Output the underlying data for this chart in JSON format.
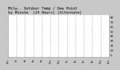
{
  "title_line1": "Milw.. Outdoor Temp / Dew Point",
  "title_line2": "by Minute  (24 Hours) (Alternate)",
  "fig_bg_color": "#c8c8c8",
  "plot_bg_color": "#ffffff",
  "text_color": "#000000",
  "grid_color": "#aaaaaa",
  "temp_color": "#ff0000",
  "dew_color": "#0000ff",
  "ylim": [
    -5,
    85
  ],
  "xlim": [
    0,
    1440
  ],
  "yticks": [
    0,
    10,
    20,
    30,
    40,
    50,
    60,
    70,
    80
  ],
  "ytick_labels": [
    "0",
    "10",
    "20",
    "30",
    "40",
    "50",
    "60",
    "70",
    "80"
  ],
  "title_fontsize": 4.0,
  "tick_fontsize": 2.8,
  "dot_size": 0.5
}
